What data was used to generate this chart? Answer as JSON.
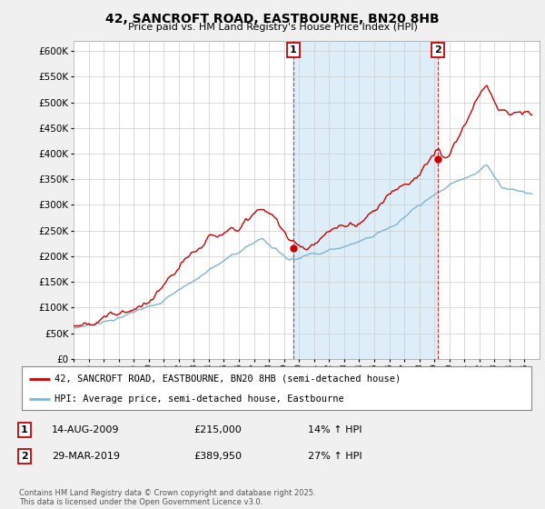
{
  "title": "42, SANCROFT ROAD, EASTBOURNE, BN20 8HB",
  "subtitle": "Price paid vs. HM Land Registry's House Price Index (HPI)",
  "ylim": [
    0,
    620000
  ],
  "yticks": [
    0,
    50000,
    100000,
    150000,
    200000,
    250000,
    300000,
    350000,
    400000,
    450000,
    500000,
    550000,
    600000
  ],
  "background_color": "#f0f0f0",
  "plot_background": "#ffffff",
  "shade_color": "#ddeef8",
  "red_color": "#cc0000",
  "blue_color": "#7fb3d3",
  "grid_color": "#cccccc",
  "sale1_x": 2009.62,
  "sale1_y": 215000,
  "sale2_x": 2019.23,
  "sale2_y": 389950,
  "legend_entry1": "42, SANCROFT ROAD, EASTBOURNE, BN20 8HB (semi-detached house)",
  "legend_entry2": "HPI: Average price, semi-detached house, Eastbourne",
  "table_row1": [
    "1",
    "14-AUG-2009",
    "£215,000",
    "14% ↑ HPI"
  ],
  "table_row2": [
    "2",
    "29-MAR-2019",
    "£389,950",
    "27% ↑ HPI"
  ],
  "footer": "Contains HM Land Registry data © Crown copyright and database right 2025.\nThis data is licensed under the Open Government Licence v3.0.",
  "xmin": 1995,
  "xmax": 2026
}
